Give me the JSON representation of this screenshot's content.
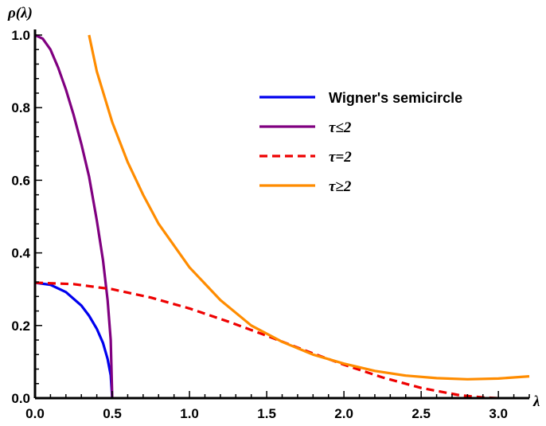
{
  "chart_data": {
    "type": "line",
    "title": "",
    "xlabel": "λ",
    "ylabel": "ρ(λ)",
    "xlim": [
      0,
      3.2
    ],
    "ylim": [
      0,
      1.0
    ],
    "x_ticks": [
      "0.0",
      "0.5",
      "1.0",
      "1.5",
      "2.0",
      "2.5",
      "3.0"
    ],
    "y_ticks": [
      "0.0",
      "0.2",
      "0.4",
      "0.6",
      "0.8",
      "1.0"
    ],
    "grid": false,
    "legend_position": "top-right",
    "series": [
      {
        "name": "Wigner's semicircle",
        "color": "#0000ee",
        "dash": "solid",
        "x": [
          0,
          0.1,
          0.2,
          0.3,
          0.35,
          0.4,
          0.44,
          0.47,
          0.49,
          0.5
        ],
        "y": [
          0.318,
          0.312,
          0.292,
          0.255,
          0.227,
          0.191,
          0.152,
          0.108,
          0.063,
          0
        ]
      },
      {
        "name": "τ≤2",
        "color": "#800080",
        "dash": "solid",
        "x": [
          0,
          0.05,
          0.1,
          0.15,
          0.2,
          0.25,
          0.3,
          0.35,
          0.4,
          0.44,
          0.47,
          0.49,
          0.5
        ],
        "y": [
          1.0,
          0.99,
          0.96,
          0.91,
          0.85,
          0.78,
          0.7,
          0.61,
          0.49,
          0.38,
          0.27,
          0.16,
          0
        ]
      },
      {
        "name": "τ=2",
        "color": "#ee0000",
        "dash": "dashed",
        "x": [
          0,
          0.25,
          0.5,
          0.75,
          1.0,
          1.25,
          1.5,
          1.75,
          2.0,
          2.25,
          2.5,
          2.75,
          2.9,
          3.0
        ],
        "y": [
          0.318,
          0.314,
          0.3,
          0.277,
          0.247,
          0.211,
          0.172,
          0.131,
          0.092,
          0.057,
          0.028,
          0.008,
          0.002,
          0.0
        ]
      },
      {
        "name": "τ≥2",
        "color": "#ff8c00",
        "dash": "solid",
        "x": [
          0.35,
          0.4,
          0.5,
          0.6,
          0.7,
          0.8,
          1.0,
          1.2,
          1.4,
          1.6,
          1.8,
          2.0,
          2.2,
          2.4,
          2.6,
          2.8,
          3.0,
          3.2
        ],
        "y": [
          1.0,
          0.9,
          0.76,
          0.65,
          0.56,
          0.48,
          0.36,
          0.27,
          0.2,
          0.155,
          0.12,
          0.095,
          0.075,
          0.062,
          0.055,
          0.052,
          0.054,
          0.06
        ]
      }
    ]
  }
}
